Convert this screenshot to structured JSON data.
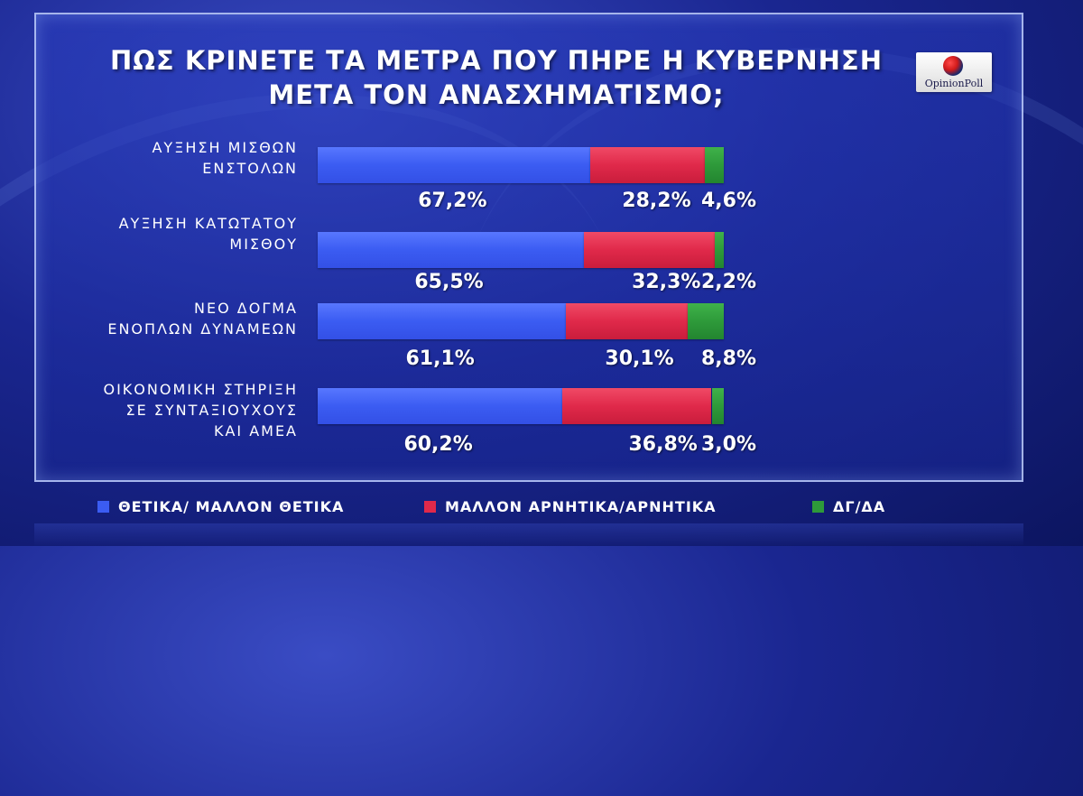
{
  "title_lines": [
    "ΠΩΣ ΚΡΙΝΕΤΕ ΤΑ ΜΕΤΡΑ ΠΟΥ ΠΗΡΕ Η ΚΥΒΕΡΝΗΣΗ",
    "ΜΕΤΑ ΤΟΝ ΑΝΑΣΧΗΜΑΤΙΣΜΟ;"
  ],
  "logo": {
    "text": "OpinionPoll"
  },
  "colors": {
    "positive": "#3b5cf2",
    "negative": "#e0294a",
    "dk": "#2e9a3a"
  },
  "chart_data": {
    "type": "bar",
    "orientation": "horizontal",
    "stacked": true,
    "categories": [
      "ΑΥΞΗΣΗ ΜΙΣΘΩΝ\nΕΝΣΤΟΛΩΝ",
      "ΑΥΞΗΣΗ ΚΑΤΩΤΑΤΟΥ\nΜΙΣΘΟΥ",
      "ΝΕΟ ΔΟΓΜΑ\nΕΝΟΠΛΩΝ ΔΥΝΑΜΕΩΝ",
      "ΟΙΚΟΝΟΜΙΚΗ ΣΤΗΡΙΞΗ\nΣΕ ΣΥΝΤΑΞΙΟΥΧΟΥΣ\nΚΑΙ ΑΜΕΑ"
    ],
    "series": [
      {
        "name": "ΘΕΤΙΚΑ/ ΜΑΛΛΟΝ ΘΕΤΙΚΑ",
        "values": [
          67.2,
          65.5,
          61.1,
          60.2
        ]
      },
      {
        "name": "ΜΑΛΛΟΝ ΑΡΝΗΤΙΚΑ/ΑΡΝΗΤΙΚΑ",
        "values": [
          28.2,
          32.3,
          30.1,
          36.8
        ]
      },
      {
        "name": "ΔΓ/ΔΑ",
        "values": [
          4.6,
          2.2,
          8.8,
          3.0
        ]
      }
    ],
    "value_labels": [
      [
        "67,2%",
        "28,2%",
        "4,6%"
      ],
      [
        "65,5%",
        "32,3%",
        "2,2%"
      ],
      [
        "61,1%",
        "30,1%",
        "8,8%"
      ],
      [
        "60,2%",
        "36,8%",
        "3,0%"
      ]
    ],
    "legend_position": "bottom"
  }
}
